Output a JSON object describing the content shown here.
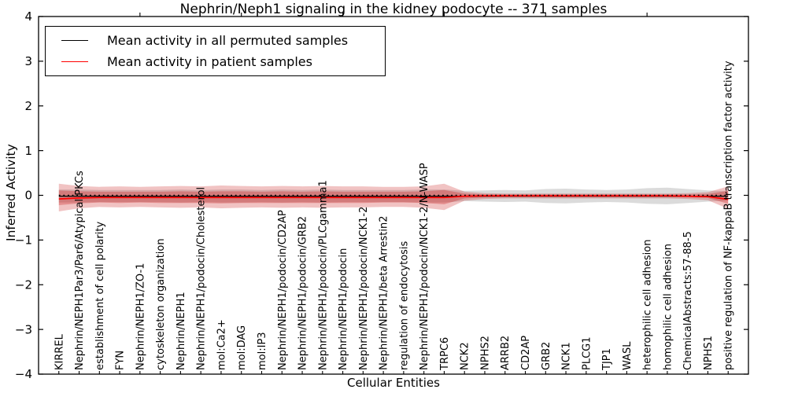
{
  "chart_data": {
    "type": "line",
    "title": "Nephrin/Neph1 signaling in the kidney podocyte -- 371 samples",
    "xlabel": "Cellular Entities",
    "ylabel": "Inferred Activity",
    "ylim": [
      -4,
      4
    ],
    "ytick_values": [
      4,
      3,
      2,
      1,
      0,
      -1,
      -2,
      -3,
      -4
    ],
    "ytick_labels": [
      "4",
      "3",
      "2",
      "1",
      "0",
      "−1",
      "−2",
      "−3",
      "−4"
    ],
    "grid": false,
    "legend_position": "upper left",
    "categories": [
      "KIRREL",
      "Nephrin/NEPH1Par3/Par6/Atypical PKCs",
      "establishment of cell polarity",
      "FYN",
      "Nephrin/NEPH1/ZO-1",
      "cytoskeleton organization",
      "Nephrin/NEPH1",
      "Nephrin/NEPH1/podocin/Cholesterol",
      "mol:Ca2+",
      "mol:DAG",
      "mol:IP3",
      "Nephrin/NEPH1/podocin/CD2AP",
      "Nephrin/NEPH1/podocin/GRB2",
      "Nephrin/NEPH1/podocin/PLCgamma1",
      "Nephrin/NEPH1/podocin",
      "Nephrin/NEPH1/podocin/NCK1-2",
      "Nephrin/NEPH1/beta Arrestin2",
      "regulation of endocytosis",
      "Nephrin/NEPH1/podocin/NCK1-2/N-WASP",
      "TRPC6",
      "NCK2",
      "NPHS2",
      "ARRB2",
      "CD2AP",
      "GRB2",
      "NCK1",
      "PLCG1",
      "TJP1",
      "WASL",
      "heterophilic cell adhesion",
      "homophilic cell adhesion",
      "ChemicalAbstracts:57-88-5",
      "NPHS1",
      "positive regulation of NF-kappaB transcription factor activity"
    ],
    "series": [
      {
        "name": "Mean activity in all permuted samples",
        "color": "#000000",
        "style": "solid",
        "in_legend": true,
        "values": [
          -0.02,
          -0.02,
          -0.02,
          -0.02,
          -0.02,
          -0.02,
          -0.02,
          -0.02,
          -0.02,
          -0.02,
          -0.02,
          -0.02,
          -0.02,
          -0.02,
          -0.02,
          -0.02,
          -0.02,
          -0.02,
          -0.02,
          -0.02,
          -0.02,
          -0.02,
          -0.02,
          -0.02,
          -0.02,
          -0.02,
          -0.02,
          -0.02,
          -0.02,
          -0.02,
          -0.02,
          -0.02,
          -0.02,
          -0.02
        ]
      },
      {
        "name": "Mean activity in patient samples",
        "color": "#ff0000",
        "style": "solid",
        "in_legend": true,
        "values": [
          -0.08,
          -0.06,
          -0.05,
          -0.05,
          -0.05,
          -0.05,
          -0.05,
          -0.05,
          -0.05,
          -0.05,
          -0.05,
          -0.05,
          -0.05,
          -0.05,
          -0.05,
          -0.05,
          -0.05,
          -0.05,
          -0.05,
          -0.05,
          -0.02,
          -0.01,
          -0.01,
          -0.01,
          -0.01,
          -0.01,
          -0.01,
          -0.01,
          -0.01,
          -0.01,
          -0.01,
          -0.02,
          -0.03,
          -0.09
        ]
      },
      {
        "name": "zero reference",
        "color": "#000000",
        "style": "dotted",
        "in_legend": false,
        "values": [
          0,
          0,
          0,
          0,
          0,
          0,
          0,
          0,
          0,
          0,
          0,
          0,
          0,
          0,
          0,
          0,
          0,
          0,
          0,
          0,
          0,
          0,
          0,
          0,
          0,
          0,
          0,
          0,
          0,
          0,
          0,
          0,
          0,
          0
        ]
      }
    ],
    "bands": [
      {
        "name": "permuted samples spread",
        "color": "#999999",
        "opacity": 0.35,
        "upper": [
          0.13,
          0.13,
          0.12,
          0.12,
          0.12,
          0.12,
          0.13,
          0.12,
          0.13,
          0.13,
          0.12,
          0.13,
          0.12,
          0.13,
          0.12,
          0.12,
          0.12,
          0.12,
          0.13,
          0.13,
          0.1,
          0.11,
          0.12,
          0.11,
          0.14,
          0.15,
          0.13,
          0.12,
          0.13,
          0.16,
          0.17,
          0.14,
          0.11,
          0.09
        ],
        "lower": [
          -0.16,
          -0.16,
          -0.15,
          -0.15,
          -0.15,
          -0.15,
          -0.16,
          -0.15,
          -0.16,
          -0.16,
          -0.15,
          -0.16,
          -0.15,
          -0.16,
          -0.15,
          -0.15,
          -0.15,
          -0.15,
          -0.16,
          -0.16,
          -0.13,
          -0.14,
          -0.15,
          -0.14,
          -0.17,
          -0.18,
          -0.16,
          -0.15,
          -0.16,
          -0.19,
          -0.2,
          -0.17,
          -0.14,
          -0.12
        ]
      },
      {
        "name": "patient samples spread outer",
        "color": "#cc2222",
        "opacity": 0.27,
        "upper": [
          0.26,
          0.21,
          0.19,
          0.2,
          0.19,
          0.2,
          0.21,
          0.2,
          0.22,
          0.21,
          0.2,
          0.21,
          0.2,
          0.21,
          0.2,
          0.2,
          0.19,
          0.19,
          0.2,
          0.26,
          0.08,
          0.05,
          0.04,
          0.04,
          0.04,
          0.04,
          0.04,
          0.04,
          0.04,
          0.04,
          0.04,
          0.05,
          0.07,
          0.2
        ],
        "lower": [
          -0.36,
          -0.29,
          -0.26,
          -0.27,
          -0.26,
          -0.27,
          -0.28,
          -0.27,
          -0.29,
          -0.28,
          -0.27,
          -0.28,
          -0.27,
          -0.28,
          -0.27,
          -0.27,
          -0.26,
          -0.26,
          -0.28,
          -0.33,
          -0.12,
          -0.08,
          -0.07,
          -0.07,
          -0.07,
          -0.07,
          -0.07,
          -0.07,
          -0.07,
          -0.07,
          -0.07,
          -0.08,
          -0.11,
          -0.3
        ]
      },
      {
        "name": "patient samples spread inner",
        "color": "#cc2222",
        "opacity": 0.33,
        "upper": [
          0.11,
          0.09,
          0.08,
          0.08,
          0.08,
          0.08,
          0.09,
          0.08,
          0.09,
          0.09,
          0.08,
          0.09,
          0.08,
          0.09,
          0.08,
          0.08,
          0.08,
          0.08,
          0.09,
          0.12,
          0.04,
          0.02,
          0.02,
          0.02,
          0.02,
          0.02,
          0.02,
          0.02,
          0.02,
          0.02,
          0.02,
          0.02,
          0.03,
          0.1
        ],
        "lower": [
          -0.22,
          -0.18,
          -0.16,
          -0.17,
          -0.16,
          -0.17,
          -0.17,
          -0.17,
          -0.18,
          -0.17,
          -0.17,
          -0.17,
          -0.17,
          -0.17,
          -0.17,
          -0.17,
          -0.16,
          -0.16,
          -0.17,
          -0.2,
          -0.07,
          -0.05,
          -0.04,
          -0.04,
          -0.04,
          -0.04,
          -0.04,
          -0.04,
          -0.04,
          -0.04,
          -0.04,
          -0.05,
          -0.06,
          -0.19
        ]
      }
    ]
  }
}
